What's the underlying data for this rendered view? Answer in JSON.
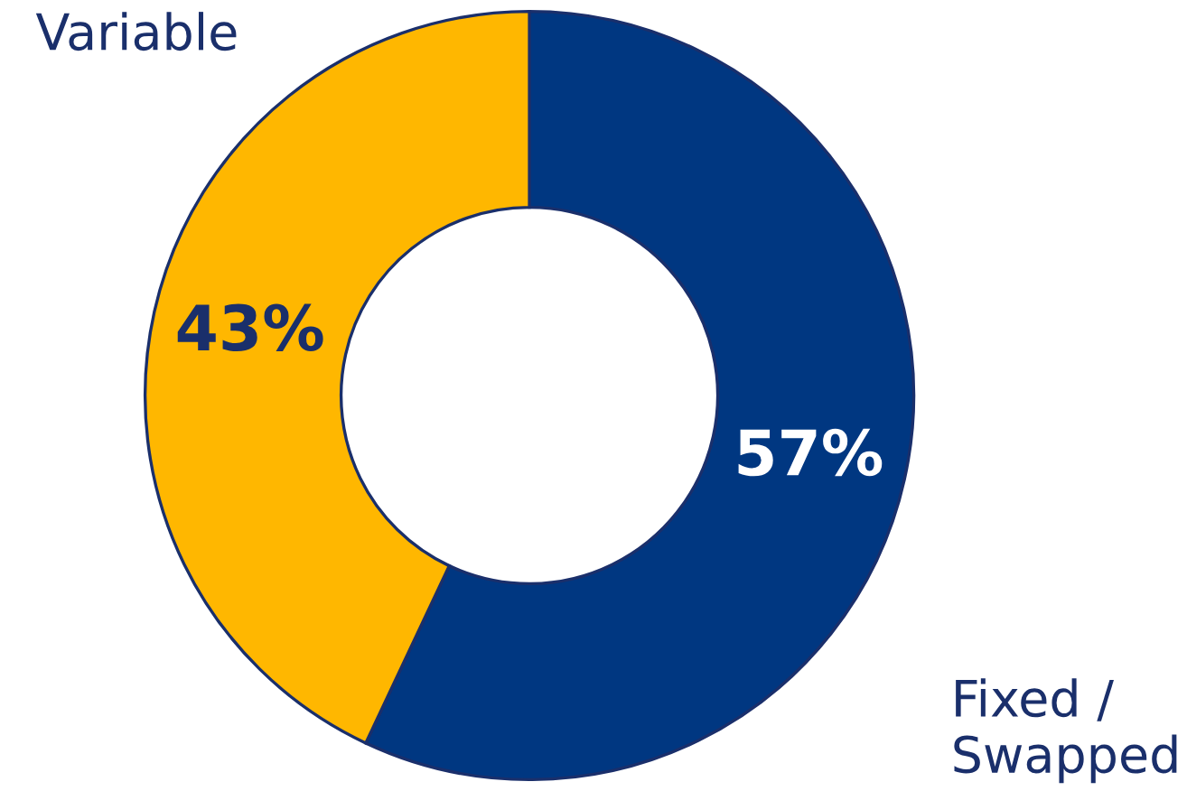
{
  "chart_data": {
    "type": "donut",
    "categories": [
      "Fixed /\nSwapped",
      "Variable"
    ],
    "values": [
      57,
      43
    ],
    "colors": [
      "#003781",
      "#ffb700"
    ],
    "value_labels": [
      "57%",
      "43%"
    ]
  }
}
